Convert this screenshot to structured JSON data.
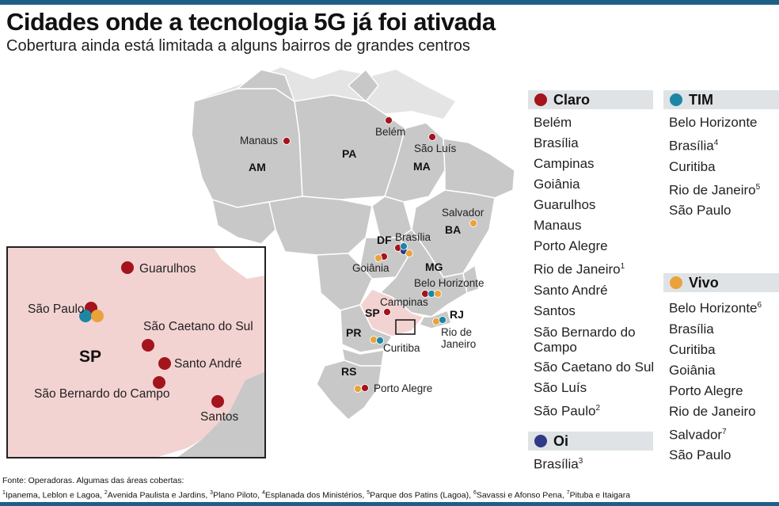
{
  "title": "Cidades onde a tecnologia 5G já foi ativada",
  "subtitle": "Cobertura ainda está limitada a alguns bairros de grandes centros",
  "colors": {
    "claro": "#a3141c",
    "tim": "#1d86a4",
    "oi": "#2f3b86",
    "vivo": "#eaa23a",
    "state_fill": "#c8c8c8",
    "sp_fill": "#f3d3d2",
    "header_bar": "#1f5f86"
  },
  "map": {
    "state_labels": [
      "AM",
      "PA",
      "MA",
      "BA",
      "DF",
      "MG",
      "SP",
      "RJ",
      "PR",
      "RS"
    ],
    "city_labels": [
      "Manaus",
      "Belém",
      "São Luís",
      "Salvador",
      "Brasília",
      "Goiânia",
      "Belo Horizonte",
      "Campinas",
      "Rio de Janeiro",
      "Curitiba",
      "Porto Alegre"
    ],
    "rio_label_lines": [
      "Rio de",
      "Janeiro"
    ]
  },
  "inset": {
    "state_label": "SP",
    "city_labels": [
      "Guarulhos",
      "São Paulo",
      "São Caetano do Sul",
      "Santo André",
      "São Bernardo do Campo",
      "Santos"
    ]
  },
  "operators": {
    "claro": {
      "name": "Claro",
      "cities": [
        "Belém",
        "Brasília",
        "Campinas",
        "Goiânia",
        "Guarulhos",
        "Manaus",
        "Porto Alegre",
        "Rio de Janeiro",
        "Santo André",
        "Santos",
        "São Bernardo do Campo",
        "São Caetano do Sul",
        "São Luís",
        "São Paulo"
      ]
    },
    "tim": {
      "name": "TIM",
      "cities": [
        "Belo Horizonte",
        "Brasília",
        "Curitiba",
        "Rio de Janeiro",
        "São Paulo"
      ]
    },
    "oi": {
      "name": "Oi",
      "cities": [
        "Brasília"
      ]
    },
    "vivo": {
      "name": "Vivo",
      "cities": [
        "Belo Horizonte",
        "Brasília",
        "Curitiba",
        "Goiânia",
        "Porto Alegre",
        "Rio de Janeiro",
        "Salvador",
        "São Paulo"
      ]
    }
  },
  "footnote_marks": {
    "1": "1",
    "2": "2",
    "3": "3",
    "4": "4",
    "5": "5",
    "6": "6",
    "7": "7"
  },
  "source": {
    "line1": "Fonte: Operadoras. Algumas das áreas cobertas:",
    "notes": [
      "Ipanema, Leblon e Lagoa,",
      "Avenida Paulista e Jardins,",
      "Plano Piloto,",
      "Esplanada dos Ministérios,",
      "Parque dos Patins (Lagoa),",
      "Savassi e Afonso Pena,",
      "Pituba e Itaigara"
    ]
  }
}
